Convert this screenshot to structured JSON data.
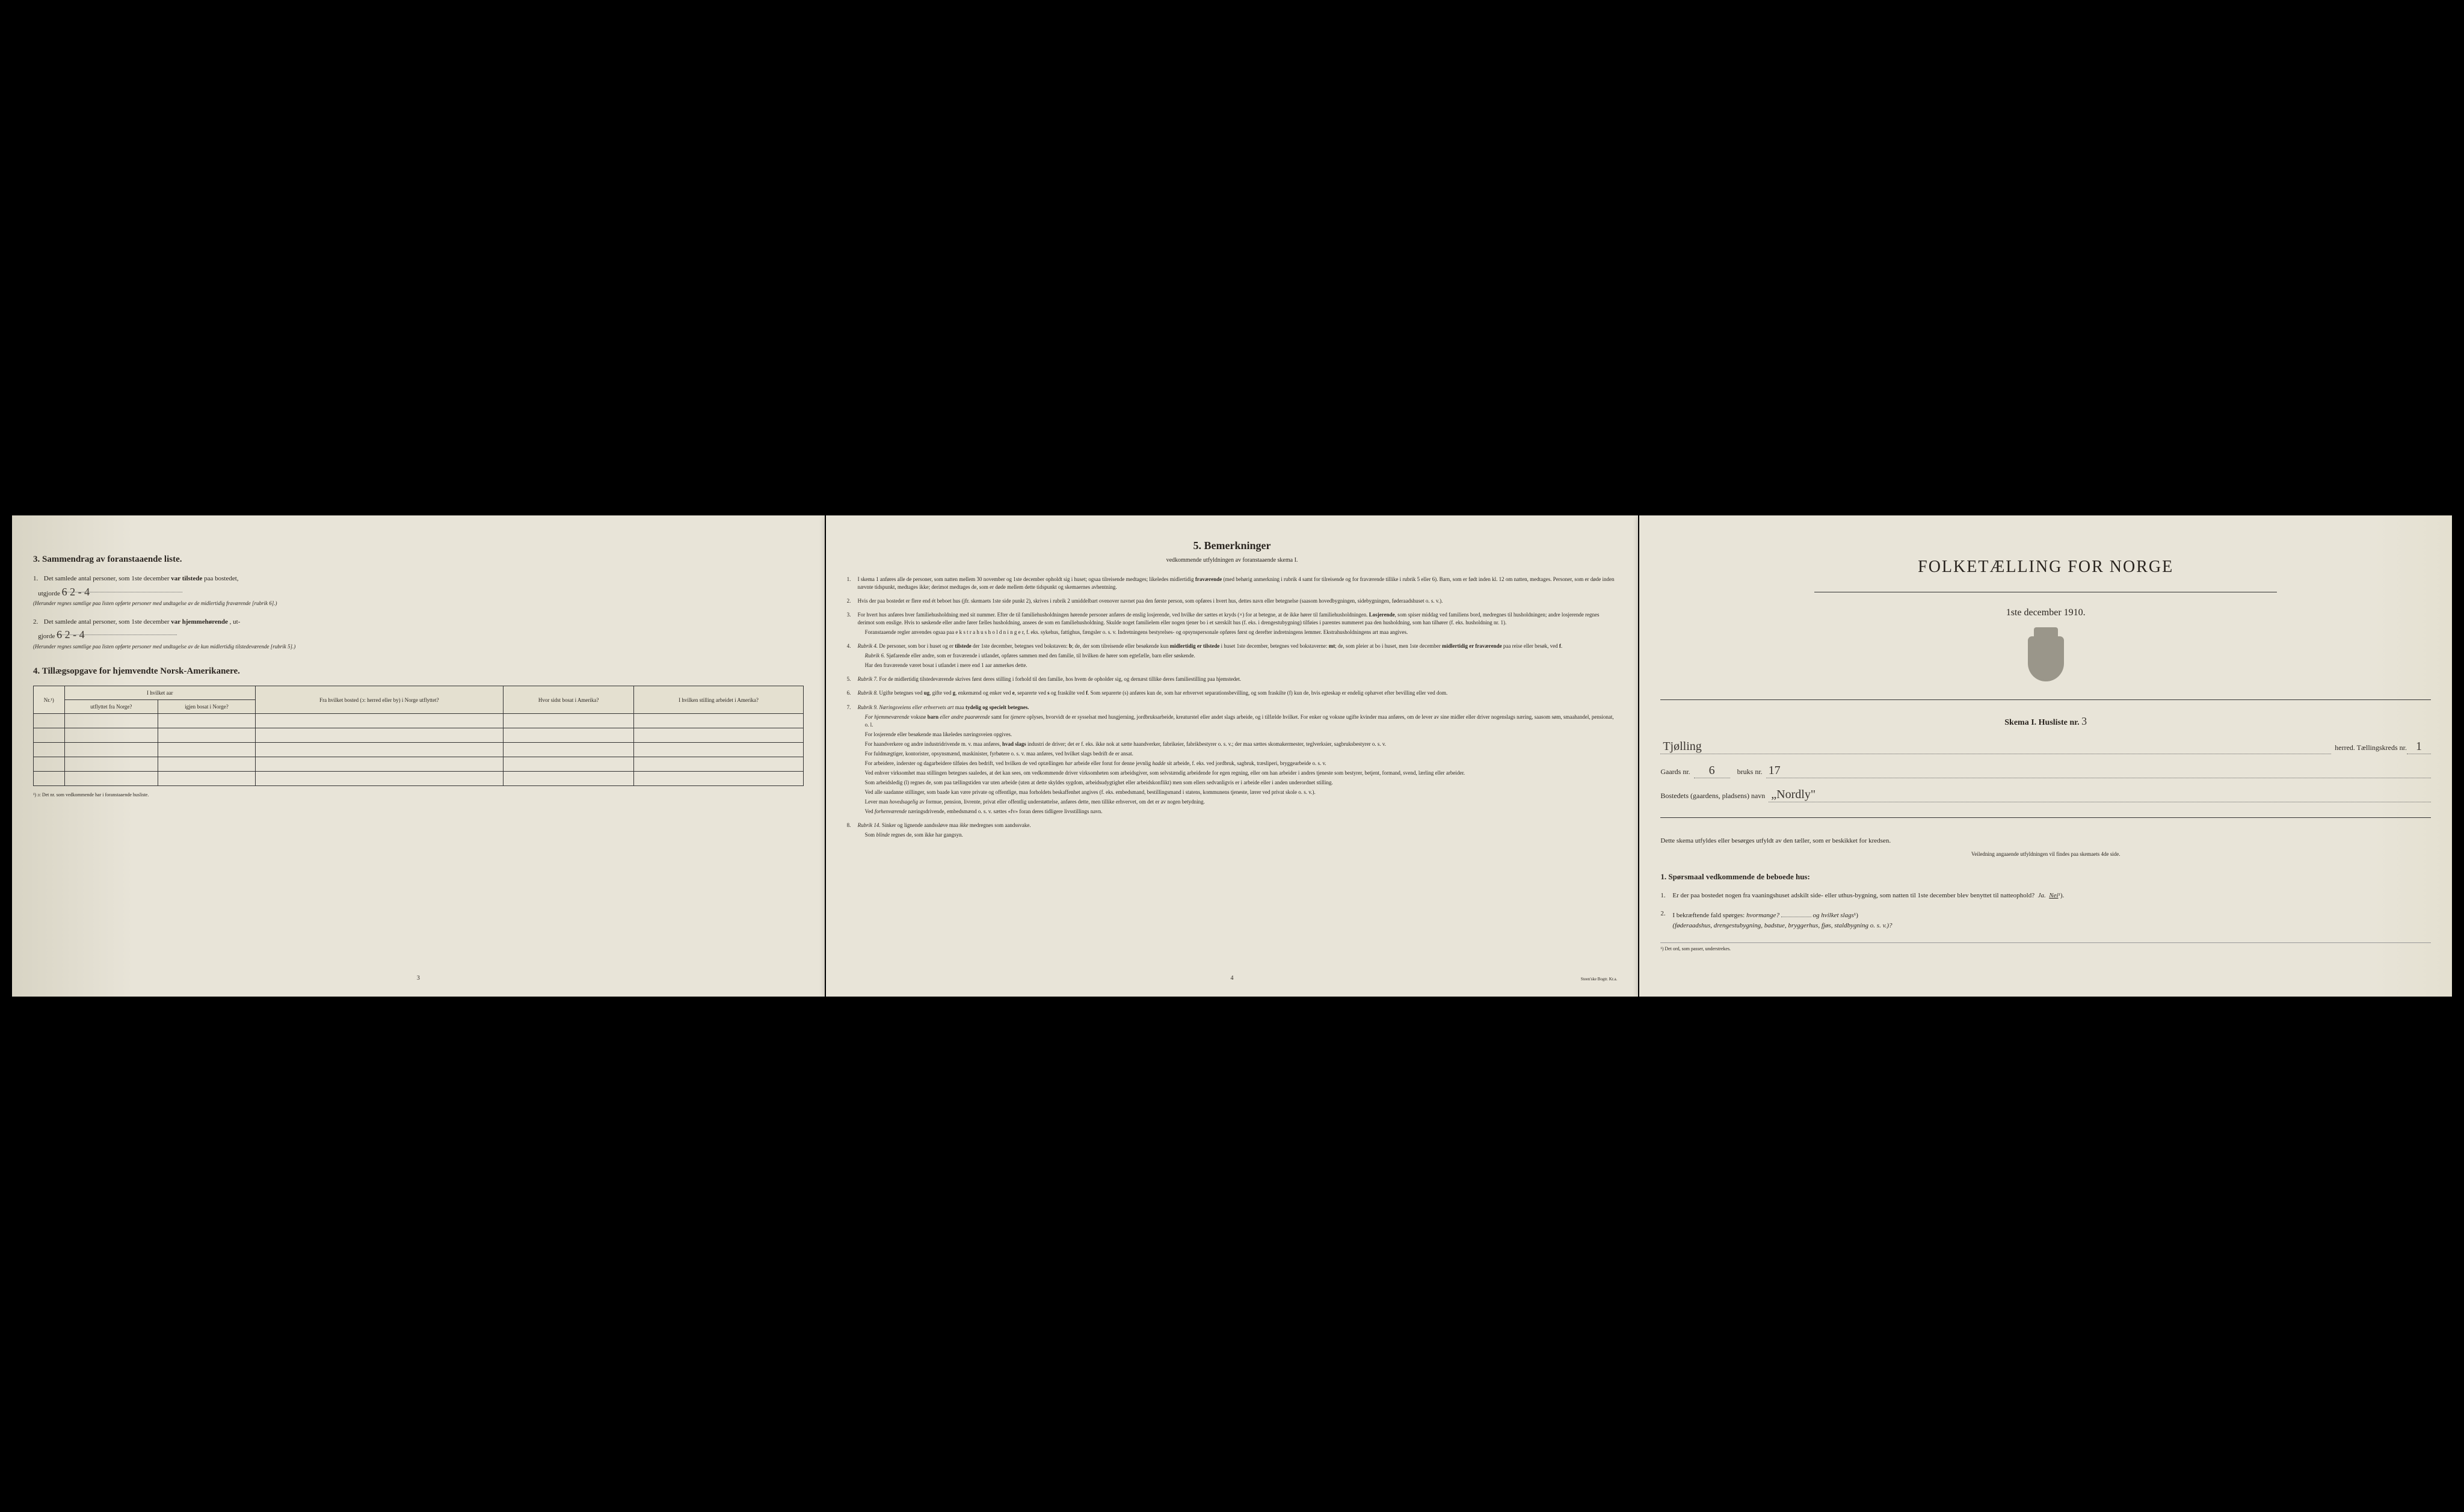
{
  "page3": {
    "heading": "3.   Sammendrag av foranstaaende liste.",
    "item1_pre": "Det samlede antal personer, som 1ste december",
    "item1_bold": "var tilstede",
    "item1_post": "paa bostedet,",
    "item1_label": "utgjorde",
    "item1_value": "6    2 - 4",
    "item1_note": "(Herunder regnes samtlige paa listen opførte personer med undtagelse av de midlertidig fraværende [rubrik 6].)",
    "item2_pre": "Det samlede antal personer, som 1ste december",
    "item2_bold": "var hjemmehørende",
    "item2_post": ", ut-",
    "item2_label": "gjorde",
    "item2_value": "6    2 - 4",
    "item2_note": "(Herunder regnes samtlige paa listen opførte personer med undtagelse av de kun midlertidig tilstedeværende [rubrik 5].)",
    "heading4": "4.  Tillægsopgave for hjemvendte Norsk-Amerikanere.",
    "table": {
      "h_nr": "Nr.¹)",
      "h_aar_span": "I hvilket aar",
      "h_utflyttet": "utflyttet fra Norge?",
      "h_igjen": "igjen bosat i Norge?",
      "h_fra": "Fra hvilket bosted (ɔ: herred eller by) i Norge utflyttet?",
      "h_hvor": "Hvor sidst bosat i Amerika?",
      "h_stilling": "I hvilken stilling arbeidet i Amerika?"
    },
    "table_footnote": "¹) ɔ: Det nr. som vedkommende har i foranstaaende husliste.",
    "page_num": "3"
  },
  "page4": {
    "heading": "5.    Bemerkninger",
    "subtitle": "vedkommende utfyldningen av foranstaaende skema I.",
    "items": [
      {
        "n": "1.",
        "t": "I skema 1 anføres alle de personer, som natten mellem 30 november og 1ste december opholdt sig i huset; ogsaa tilreisende medtages; likeledes midlertidig <b>fraværende</b> (med behørig anmerkning i rubrik 4 samt for tilreisende og for fraværende tillike i rubrik 5 eller 6). Barn, som er født inden kl. 12 om natten, medtages. Personer, som er døde inden nævnte tidspunkt, medtages ikke; derimot medtages de, som er døde mellem dette tidspunkt og skemaernes avhentning."
      },
      {
        "n": "2.",
        "t": "Hvis der paa bostedet er flere end ét beboet hus (jfr. skemaets 1ste side punkt 2), skrives i rubrik 2 umiddelbart ovenover navnet paa den første person, som opføres i hvert hus, dettes navn eller betegnelse (saasom hovedbygningen, sidebygningen, føderaadshuset o. s. v.)."
      },
      {
        "n": "3.",
        "t": "For hvert hus anføres hver familiehusholdning med sit nummer. Efter de til familiehusholdningen hørende personer anføres de enslig losjerende, ved hvilke der sættes et kryds (×) for at betegne, at de ikke hører til familiehusholdningen. <b>Losjerende</b>, som spiser middag ved familiens bord, medregnes til husholdningen; andre losjerende regnes derimot som enslige. Hvis to søskende eller andre fører fælles husholdning, ansees de som en familiehusholdning. Skulde noget familielem eller nogen tjener bo i et særskilt hus (f. eks. i drengestubygning) tilføies i parentes nummeret paa den husholdning, som han tilhører (f. eks. husholdning nr. 1).",
        "sub": "Foranstaaende regler anvendes ogsaa paa e k s t r a h u s h o l d n i n g e r, f. eks. sykehus, fattighus, fængsler o. s. v. Indretningens bestyrelses- og opsynspersonale opføres først og derefter indretningens lemmer. Ekstrahusholdningens art maa angives."
      },
      {
        "n": "4.",
        "t": "<i>Rubrik 4.</i> De personer, som bor i huset og er <b>tilstede</b> der 1ste december, betegnes ved bokstaven: <b>b</b>; de, der som tilreisende eller besøkende kun <b>midlertidig er tilstede</b> i huset 1ste december, betegnes ved bokstaverne: <b>mt</b>; de, som pleier at bo i huset, men 1ste december <b>midlertidig er fraværende</b> paa reise eller besøk, ved <b>f</b>.",
        "sub": "<i>Rubrik 6.</i> Sjøfarende eller andre, som er fraværende i utlandet, opføres sammen med den familie, til hvilken de hører som egtefælle, barn eller søskende.",
        "sub2": "Har den fraværende været bosat i utlandet i mere end 1 aar anmerkes dette."
      },
      {
        "n": "5.",
        "t": "<i>Rubrik 7.</i> For de midlertidig tilstedeværende skrives først deres stilling i forhold til den familie, hos hvem de opholder sig, og dernæst tillike deres familiestilling paa hjemstedet."
      },
      {
        "n": "6.",
        "t": "<i>Rubrik 8.</i> Ugifte betegnes ved <b>ug</b>, gifte ved <b>g</b>, enkemænd og enker ved <b>e</b>, separerte ved <b>s</b> og fraskilte ved <b>f</b>. Som separerte (s) anføres kun de, som har erhvervet separationsbevilling, og som fraskilte (f) kun de, hvis egteskap er endelig ophævet efter bevilling eller ved dom."
      },
      {
        "n": "7.",
        "t": "<i>Rubrik 9. Næringsveiens eller erhvervets art</i> maa <b>tydelig og specielt betegnes.</b>",
        "subs": [
          "<i>For hjemmeværende</i> voksne <b>barn</b> <i>eller andre paarørende</i> samt for <i>tjenere</i> oplyses, hvorvidt de er sysselsat med husgjerning, jordbruksarbeide, kreaturstel eller andet slags arbeide, og i tilfælde hvilket. For enker og voksne ugifte kvinder maa anføres, om de lever av sine midler eller driver nogenslags næring, saasom søm, smaahandel, pensionat, o. l.",
          "For losjerende eller besøkende maa likeledes næringsveien opgives.",
          "For haandverkere og andre industridrivende m. v. maa anføres, <b>hvad slags</b> industri de driver; det er f. eks. ikke nok at sætte haandverker, fabrikeier, fabrikbestyrer o. s. v.; der maa sættes skomakermester, teglverksier, sagbruksbestyrer o. s. v.",
          "For fuldmægtiger, kontorister, opsynsmænd, maskinister, fyrbøtere o. s. v. maa anføres, ved hvilket slags bedrift de er ansat.",
          "For arbeidere, inderster og dagarbeidere tilføies den bedrift, ved hvilken de ved optællingen <i>har</i> arbeide eller forut for denne jevnlig <i>hadde</i> sit arbeide, f. eks. ved jordbruk, sagbruk, træsliperi, bryggearbeide o. s. v.",
          "Ved enhver virksomhet maa stillingen betegnes saaledes, at det kan sees, om vedkommende driver virksomheten som arbeidsgiver, som selvstændig arbeidende for egen regning, eller om han arbeider i andres tjeneste som bestyrer, betjent, formand, svend, lærling eller arbeider.",
          "Som arbeidsledig (l) regnes de, som paa tællingstiden var uten arbeide (uten at dette skyldes sygdom, arbeidsudygtighet eller arbeidskonflikt) men som ellers sedvanligvis er i arbeide eller i anden underordnet stilling.",
          "Ved alle saadanne stillinger, som baade kan være private og offentlige, maa forholdets beskaffenhet angives (f. eks. embedsmand, bestillingsmand i statens, kommunens tjeneste, lærer ved privat skole o. s. v.).",
          "Lever man <i>hovedsagelig</i> av formue, pension, livrente, privat eller offentlig understøttelse, anføres dette, men tillike erhvervet, om det er av nogen betydning.",
          "Ved <i>forhenværende</i> næringsdrivende, embedsmænd o. s. v. sættes «fv» foran deres tidligere livsstillings navn."
        ]
      },
      {
        "n": "8.",
        "t": "<i>Rubrik 14.</i> Sinker og lignende aandssløve maa <i>ikke</i> medregnes som aandssvake.",
        "sub": "Som <i>blinde</i> regnes de, som ikke har gangsyn."
      }
    ],
    "page_num": "4",
    "printer": "Steen'ske Bogtr. Kr.a."
  },
  "page5": {
    "title": "FOLKETÆLLING FOR NORGE",
    "date": "1ste december 1910.",
    "skema_label": "Skema I.   Husliste nr.",
    "skema_value": "3",
    "line_herred_value": "Tjølling",
    "line_herred_after": "herred.  Tællingskreds nr.",
    "line_kreds_value": "1",
    "line_gaards_label": "Gaards nr.",
    "line_gaards_value": "6",
    "line_bruks_label": "bruks nr.",
    "line_bruks_value": "17",
    "line_bosted_label": "Bostedets (gaardens, pladsens) navn",
    "line_bosted_value": "„Nordly\"",
    "instruction": "Dette skema utfyldes eller besørges utfyldt av den tæller, som er beskikket for kredsen.",
    "instruction_sub": "Veiledning angaaende utfyldningen vil findes paa skemaets 4de side.",
    "q_header": "1. Spørsmaal vedkommende de beboede hus:",
    "q1_pre": "Er der paa bostedet nogen fra vaaningshuset adskilt side- eller uthus-bygning, som natten til 1ste december blev benyttet til natteophold?",
    "q1_ja": "Ja.",
    "q1_nei": "Nei",
    "q1_sup": "¹).",
    "q2_pre": "I bekræftende fald spørges:",
    "q2_hvormange": "hvormange?",
    "q2_og": "og",
    "q2_hvilket": "hvilket slags",
    "q2_sup": "¹)",
    "q2_paren": "(føderaadshus, drengestubygning, badstue, bryggerhus, fjøs, staldbygning o. s. v.)?",
    "footnote": "¹) Det ord, som passer, understrekes."
  }
}
